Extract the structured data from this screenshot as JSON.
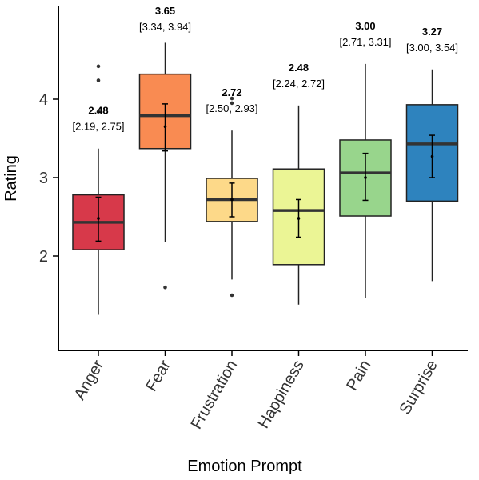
{
  "chart_data": {
    "type": "box",
    "xlabel": "Emotion Prompt",
    "ylabel": "Rating",
    "y_ticks": [
      2,
      3,
      4
    ],
    "ylim": [
      0.75,
      5.0
    ],
    "categories": [
      "Anger",
      "Fear",
      "Frustration",
      "Happiness",
      "Pain",
      "Surprise"
    ],
    "boxes": [
      {
        "category": "Anger",
        "color": "#D7394A",
        "whisker_low": 1.25,
        "q1": 2.08,
        "median": 2.43,
        "q3": 2.78,
        "whisker_high": 3.37,
        "outliers": [
          3.84,
          4.24,
          4.42
        ],
        "mean": 2.48,
        "ci_low": 2.19,
        "ci_high": 2.75,
        "mean_label": "2.48",
        "ci_label": "[2.19, 2.75]"
      },
      {
        "category": "Fear",
        "color": "#F98B52",
        "whisker_low": 2.18,
        "q1": 3.37,
        "median": 3.79,
        "q3": 4.32,
        "whisker_high": 4.72,
        "outliers": [
          1.6
        ],
        "mean": 3.65,
        "ci_low": 3.34,
        "ci_high": 3.94,
        "mean_label": "3.65",
        "ci_label": "[3.34, 3.94]"
      },
      {
        "category": "Frustration",
        "color": "#FDD989",
        "whisker_low": 1.7,
        "q1": 2.44,
        "median": 2.72,
        "q3": 2.99,
        "whisker_high": 3.6,
        "outliers": [
          1.5,
          3.95,
          4.01
        ],
        "mean": 2.72,
        "ci_low": 2.5,
        "ci_high": 2.93,
        "mean_label": "2.72",
        "ci_label": "[2.50, 2.93]"
      },
      {
        "category": "Happiness",
        "color": "#EBF595",
        "whisker_low": 1.38,
        "q1": 1.89,
        "median": 2.58,
        "q3": 3.11,
        "whisker_high": 3.92,
        "outliers": [],
        "mean": 2.48,
        "ci_low": 2.24,
        "ci_high": 2.72,
        "mean_label": "2.48",
        "ci_label": "[2.24, 2.72]"
      },
      {
        "category": "Pain",
        "color": "#98D58C",
        "whisker_low": 1.46,
        "q1": 2.51,
        "median": 3.06,
        "q3": 3.48,
        "whisker_high": 4.45,
        "outliers": [],
        "mean": 3.0,
        "ci_low": 2.71,
        "ci_high": 3.31,
        "mean_label": "3.00",
        "ci_label": "[2.71, 3.31]"
      },
      {
        "category": "Surprise",
        "color": "#2E83BE",
        "whisker_low": 1.68,
        "q1": 2.7,
        "median": 3.43,
        "q3": 3.93,
        "whisker_high": 4.38,
        "outliers": [],
        "mean": 3.27,
        "ci_low": 3.0,
        "ci_high": 3.54,
        "mean_label": "3.27",
        "ci_label": "[3.00, 3.54]"
      }
    ]
  }
}
